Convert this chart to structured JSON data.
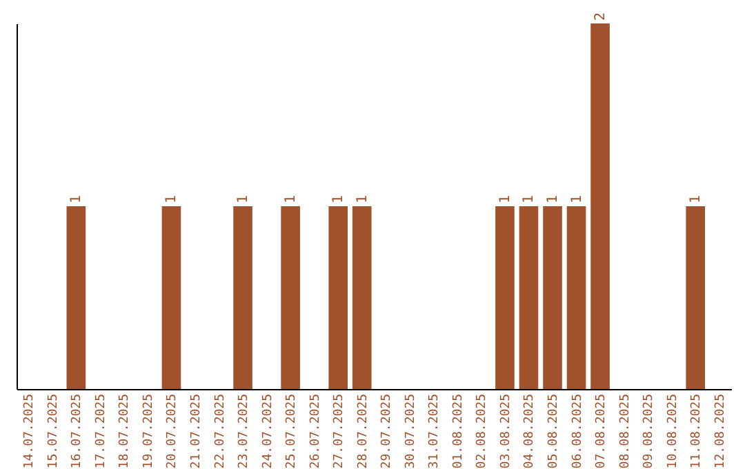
{
  "chart_data": {
    "type": "bar",
    "categories": [
      "14.07.2025",
      "15.07.2025",
      "16.07.2025",
      "17.07.2025",
      "18.07.2025",
      "19.07.2025",
      "20.07.2025",
      "21.07.2025",
      "22.07.2025",
      "23.07.2025",
      "24.07.2025",
      "25.07.2025",
      "26.07.2025",
      "27.07.2025",
      "28.07.2025",
      "29.07.2025",
      "30.07.2025",
      "31.07.2025",
      "01.08.2025",
      "02.08.2025",
      "03.08.2025",
      "04.08.2025",
      "05.08.2025",
      "06.08.2025",
      "07.08.2025",
      "08.08.2025",
      "09.08.2025",
      "10.08.2025",
      "11.08.2025",
      "12.08.2025"
    ],
    "values": [
      0,
      0,
      1,
      0,
      0,
      0,
      1,
      0,
      0,
      1,
      0,
      1,
      0,
      1,
      1,
      0,
      0,
      0,
      0,
      0,
      1,
      1,
      1,
      1,
      2,
      0,
      0,
      0,
      1,
      0
    ],
    "value_labels": [
      null,
      null,
      "1",
      null,
      null,
      null,
      "1",
      null,
      null,
      "1",
      null,
      "1",
      null,
      "1",
      "1",
      null,
      null,
      null,
      null,
      null,
      "1",
      "1",
      "1",
      "1",
      "2",
      null,
      null,
      null,
      "1",
      null
    ],
    "color": "#a0522d",
    "tick_labels": "x"
  }
}
